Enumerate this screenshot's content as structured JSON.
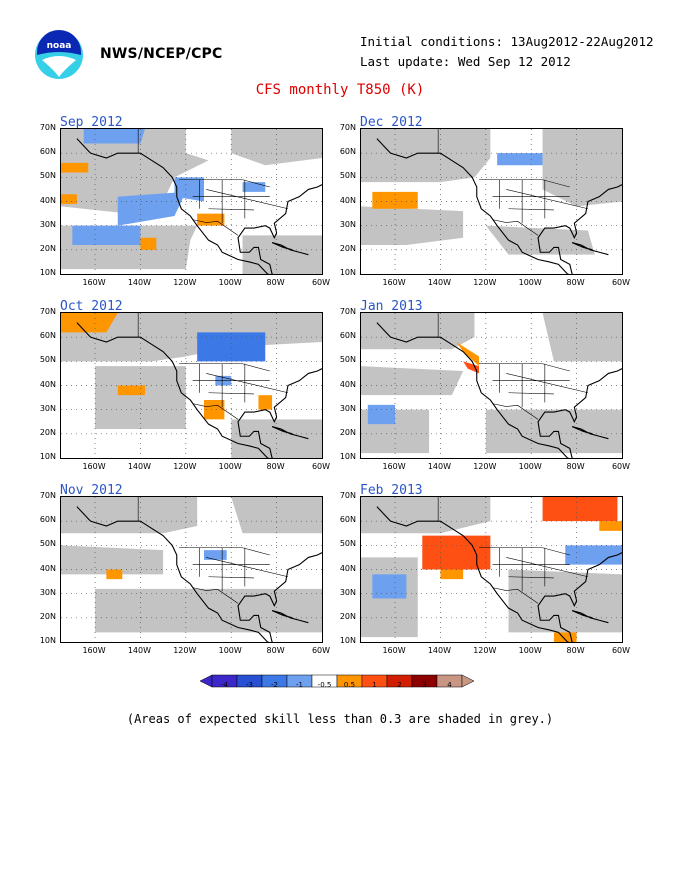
{
  "header": {
    "org": "NWS/NCEP/CPC",
    "initial_conditions": "Initial conditions: 13Aug2012-22Aug2012",
    "last_update": "Last update: Wed Sep 12 2012",
    "title": "CFS monthly T850 (K)"
  },
  "axes": {
    "lat_labels": [
      "70N",
      "60N",
      "50N",
      "40N",
      "30N",
      "20N",
      "10N"
    ],
    "lon_labels": [
      "160W",
      "140W",
      "120W",
      "100W",
      "80W",
      "60W"
    ]
  },
  "panels": [
    {
      "title": "Sep 2012"
    },
    {
      "title": "Dec 2012"
    },
    {
      "title": "Oct 2012"
    },
    {
      "title": "Jan 2013"
    },
    {
      "title": "Nov 2012"
    },
    {
      "title": "Feb 2013"
    }
  ],
  "legend": {
    "labels": [
      "-4",
      "-3",
      "-2",
      "-1",
      "-0.5",
      "0.5",
      "1",
      "2",
      "3",
      "4"
    ],
    "colors": [
      "#3c28c8",
      "#2850d2",
      "#3c78e6",
      "#6ea0f0",
      "#ffffff",
      "#ff9600",
      "#ff5014",
      "#d21e00",
      "#8c0000",
      "#c89682"
    ]
  },
  "note": "(Areas of expected skill less than 0.3 are shaded in grey.)",
  "colors": {
    "grey": "#c3c3c3",
    "title": "#d00000",
    "panel_title": "#2a56c6"
  }
}
